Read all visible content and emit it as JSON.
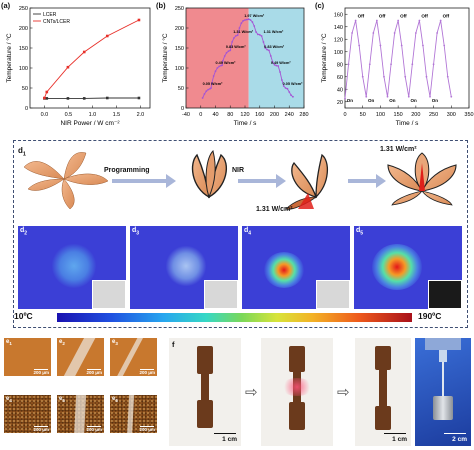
{
  "panels": {
    "a": {
      "label": "(a)",
      "chart_data": {
        "type": "line",
        "xlabel": "NIR Power / W cm⁻²",
        "ylabel": "Temperature / °C",
        "xticks": [
          "0.0",
          "0.5",
          "1.0",
          "1.5",
          "2.0"
        ],
        "yticks": [
          "0",
          "50",
          "100",
          "150",
          "200",
          "250"
        ],
        "xlim": [
          -0.3,
          2.2
        ],
        "ylim": [
          0,
          250
        ],
        "legend_position": "top-left",
        "series": [
          {
            "name": "LCER",
            "color": "#333333",
            "x": [
              0.0,
              0.05,
              0.49,
              0.83,
              1.31,
              1.97
            ],
            "y": [
              24,
              24,
              24,
              24,
              25,
              25
            ]
          },
          {
            "name": "CNTs/LCER",
            "color": "#e8302a",
            "x": [
              0.0,
              0.05,
              0.49,
              0.83,
              1.31,
              1.97
            ],
            "y": [
              25,
              40,
              102,
              140,
              180,
              220
            ]
          }
        ]
      }
    },
    "b": {
      "label": "(b)",
      "chart_data": {
        "type": "line",
        "xlabel": "Time / s",
        "ylabel": "Temperature / °C",
        "xticks": [
          "-40",
          "0",
          "40",
          "80",
          "120",
          "160",
          "200",
          "240",
          "280"
        ],
        "yticks": [
          "0",
          "50",
          "100",
          "150",
          "200",
          "250"
        ],
        "xlim": [
          -40,
          280
        ],
        "ylim": [
          0,
          250
        ],
        "heating_bg": "#f08a8f",
        "cooling_bg": "#a9dbe8",
        "series_color": "#a455d4",
        "annotations": [
          {
            "text": "0.05 W/cm²",
            "x": 5,
            "y": 52
          },
          {
            "text": "0.49 W/cm²",
            "x": 40,
            "y": 105
          },
          {
            "text": "0.83 W/cm²",
            "x": 68,
            "y": 145
          },
          {
            "text": "1.31 W/cm²",
            "x": 88,
            "y": 183
          },
          {
            "text": "1.97 W/cm²",
            "x": 118,
            "y": 222
          },
          {
            "text": "1.31 W/cm²",
            "x": 170,
            "y": 183
          },
          {
            "text": "0.83 W/cm²",
            "x": 172,
            "y": 145
          },
          {
            "text": "0.49 W/cm²",
            "x": 190,
            "y": 105
          },
          {
            "text": "0.05 W/cm²",
            "x": 222,
            "y": 52
          }
        ],
        "x": [
          5,
          10,
          15,
          20,
          25,
          28,
          30,
          35,
          40,
          45,
          50,
          55,
          58,
          60,
          65,
          70,
          75,
          80,
          85,
          90,
          95,
          100,
          105,
          110,
          115,
          120,
          125,
          130,
          135,
          140,
          145,
          150,
          155,
          160,
          165,
          170,
          175,
          180,
          185,
          190,
          195,
          200,
          205,
          210,
          215,
          220,
          225,
          230,
          235,
          240,
          245,
          250
        ],
        "y": [
          25,
          35,
          42,
          46,
          48,
          50,
          62,
          80,
          92,
          100,
          104,
          106,
          107,
          118,
          130,
          138,
          142,
          144,
          165,
          175,
          180,
          182,
          200,
          212,
          218,
          220,
          221,
          222,
          220,
          215,
          205,
          190,
          184,
          183,
          180,
          165,
          150,
          146,
          144,
          130,
          115,
          108,
          106,
          105,
          90,
          70,
          55,
          50,
          48,
          40,
          32,
          28
        ]
      }
    },
    "c": {
      "label": "(c)",
      "chart_data": {
        "type": "line",
        "xlabel": "Time / s",
        "ylabel": "Temperature / °C",
        "xticks": [
          "0",
          "50",
          "100",
          "150",
          "200",
          "250",
          "300",
          "350"
        ],
        "yticks": [
          "20",
          "40",
          "60",
          "80",
          "100",
          "120",
          "140",
          "160"
        ],
        "xlim": [
          0,
          350
        ],
        "ylim": [
          10,
          170
        ],
        "series_color": "#b276d6",
        "on_label": "On",
        "off_label": "Off",
        "x": [
          0,
          10,
          20,
          30,
          40,
          50,
          60,
          70,
          80,
          90,
          100,
          110,
          120,
          130,
          140,
          150,
          160,
          170,
          180,
          190,
          200,
          210,
          220,
          230,
          240,
          250,
          260,
          270,
          280,
          290,
          300
        ],
        "y": [
          25,
          80,
          130,
          150,
          110,
          60,
          28,
          80,
          130,
          150,
          110,
          60,
          28,
          80,
          130,
          150,
          110,
          60,
          28,
          80,
          130,
          150,
          110,
          60,
          28,
          80,
          130,
          150,
          110,
          60,
          28
        ]
      }
    },
    "d": {
      "label": "d",
      "sub": "1",
      "programming_label": "Programming",
      "nir_label": "NIR",
      "power_1": "1.31 W/cm²",
      "power_2": "1.31 W/cm²",
      "thermal": [
        {
          "label": "d",
          "sub": "2"
        },
        {
          "label": "d",
          "sub": "3"
        },
        {
          "label": "d",
          "sub": "4"
        },
        {
          "label": "d",
          "sub": "5"
        }
      ],
      "colorbar_min": "10ºC",
      "colorbar_max": "190ºC"
    },
    "e": {
      "label": "e",
      "scale": "200 μm",
      "tiles": [
        {
          "sub": "1",
          "color": "#c8782e"
        },
        {
          "sub": "2",
          "color": "#c8782e"
        },
        {
          "sub": "3",
          "color": "#c8782e"
        },
        {
          "sub": "4",
          "color": "#8a4f1c"
        },
        {
          "sub": "5",
          "color": "#8a4f1c"
        },
        {
          "sub": "6",
          "color": "#8a4f1c"
        }
      ]
    },
    "f": {
      "label": "f",
      "scale": "1 cm",
      "scale_last": "2 cm"
    }
  }
}
